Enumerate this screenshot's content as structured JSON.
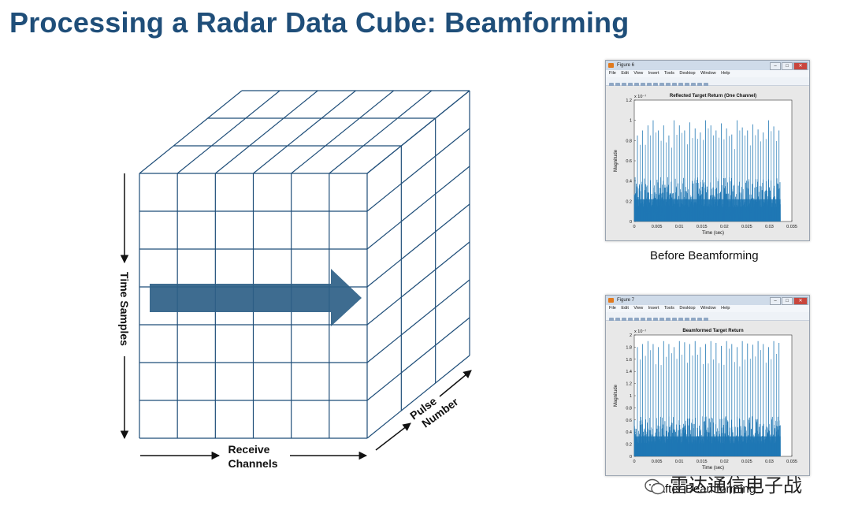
{
  "title": "Processing a Radar Data Cube: Beamforming",
  "cube": {
    "time_label": "Time Samples",
    "receive_label_line1": "Receive",
    "receive_label_line2": "Channels",
    "pulse_label_line1": "Pulse",
    "pulse_label_line2": "Number",
    "grid_cols": 6,
    "grid_rows": 7,
    "depth_layers": 3,
    "line_color": "#1f4e79",
    "arrow_color": "#2e5f87"
  },
  "figures": [
    {
      "window_title": "Figure 6",
      "menu": [
        "File",
        "Edit",
        "View",
        "Insert",
        "Tools",
        "Desktop",
        "Window",
        "Help"
      ],
      "plot_title": "Reflected Target Return (One Channel)",
      "exponent_label": "x 10⁻⁷",
      "xlabel": "Time (sec)",
      "ylabel": "Magnitude",
      "xticks": [
        "0",
        "0.005",
        "0.01",
        "0.015",
        "0.02",
        "0.025",
        "0.03",
        "0.035"
      ],
      "yticks": [
        "0",
        "0.2",
        "0.4",
        "0.6",
        "0.8",
        "1",
        "1.2"
      ],
      "caption": "Before Beamforming"
    },
    {
      "window_title": "Figure 7",
      "menu": [
        "File",
        "Edit",
        "View",
        "Insert",
        "Tools",
        "Desktop",
        "Window",
        "Help"
      ],
      "plot_title": "Beamformed Target Return",
      "exponent_label": "x 10⁻⁷",
      "xlabel": "Time (sec)",
      "ylabel": "Magnitude",
      "xticks": [
        "0",
        "0.005",
        "0.01",
        "0.015",
        "0.02",
        "0.025",
        "0.03",
        "0.035"
      ],
      "yticks": [
        "0",
        "0.2",
        "0.4",
        "0.6",
        "0.8",
        "1",
        "1.2",
        "1.4",
        "1.6",
        "1.8",
        "2"
      ],
      "caption": "After Beamforming"
    }
  ],
  "chart_data": [
    {
      "type": "line",
      "title": "Reflected Target Return (One Channel)",
      "xlabel": "Time (sec)",
      "ylabel": "Magnitude",
      "xlim": [
        0,
        0.035
      ],
      "ylim": [
        0,
        1.2
      ],
      "y_scale_exponent": -7,
      "noise_floor": 0.4,
      "peak_values": [
        0.85,
        0.9,
        0.95,
        1.0,
        0.9,
        0.95,
        0.85,
        1.0,
        0.95,
        0.9,
        0.98,
        0.92,
        0.88,
        1.0,
        0.95,
        0.9,
        0.97,
        0.92,
        0.86,
        1.0,
        0.93,
        0.9,
        0.96,
        0.91,
        0.88,
        1.0,
        0.94,
        0.9
      ],
      "signal_end_x": 0.0325
    },
    {
      "type": "line",
      "title": "Beamformed Target Return",
      "xlabel": "Time (sec)",
      "ylabel": "Magnitude",
      "xlim": [
        0,
        0.035
      ],
      "ylim": [
        0,
        2
      ],
      "y_scale_exponent": -7,
      "noise_floor": 0.6,
      "peak_values": [
        1.8,
        1.85,
        1.9,
        1.85,
        1.8,
        1.9,
        1.85,
        1.8,
        1.9,
        1.88,
        1.85,
        1.9,
        1.8,
        1.85,
        1.9,
        1.87,
        1.82,
        1.9,
        1.85,
        1.8,
        1.9,
        1.86,
        1.84,
        1.9,
        1.85,
        1.8,
        1.9,
        1.87
      ],
      "signal_end_x": 0.0325
    }
  ],
  "watermark": "雷达通信电子战"
}
